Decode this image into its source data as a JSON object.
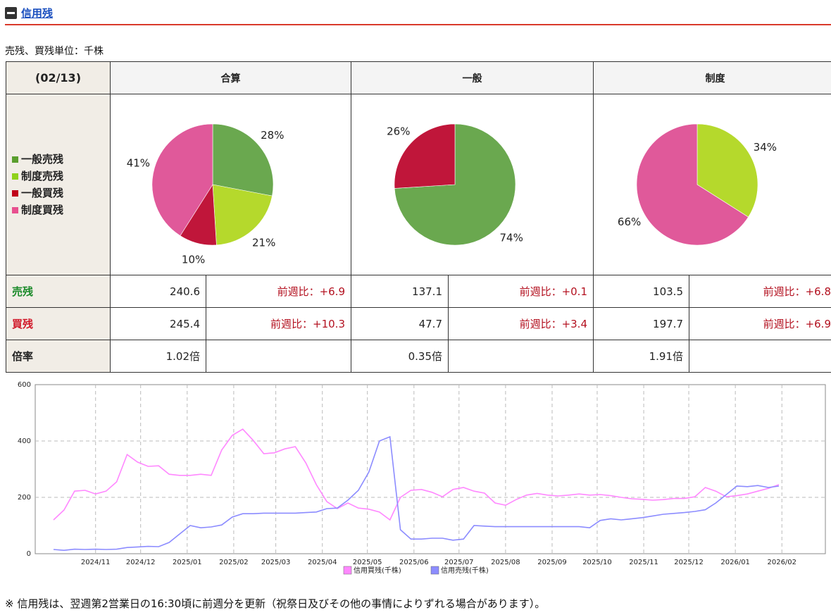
{
  "header": {
    "title": "信用残",
    "unit_note": "売残、買残単位：千株"
  },
  "colors": {
    "general_sell": "#6aa84f",
    "system_sell": "#b5d92c",
    "general_buy": "#c0163a",
    "system_buy": "#e0599a",
    "line_buy": "#ff88ff",
    "line_sell": "#8c8cff"
  },
  "table": {
    "date": "(02/13)",
    "columns": [
      "合算",
      "一般",
      "制度"
    ],
    "legend": [
      {
        "label": "一般売残",
        "color": "#5a9e2e"
      },
      {
        "label": "制度売残",
        "color": "#8fd11a"
      },
      {
        "label": "一般買残",
        "color": "#c0001a"
      },
      {
        "label": "制度買残",
        "color": "#e8508f"
      }
    ],
    "row_labels": {
      "sell": "売残",
      "buy": "買残",
      "ratio": "倍率"
    },
    "groups": [
      {
        "sell": "240.6",
        "sell_cmp": "前週比：+6.9",
        "buy": "245.4",
        "buy_cmp": "前週比：+10.3",
        "ratio": "1.02倍"
      },
      {
        "sell": "137.1",
        "sell_cmp": "前週比：+0.1",
        "buy": "47.7",
        "buy_cmp": "前週比：+3.4",
        "ratio": "0.35倍"
      },
      {
        "sell": "103.5",
        "sell_cmp": "前週比：+6.8",
        "buy": "197.7",
        "buy_cmp": "前週比：+6.9",
        "ratio": "1.91倍"
      }
    ]
  },
  "chart_data": [
    {
      "type": "pie",
      "title": "合算",
      "slices": [
        {
          "name": "一般売残",
          "value": 28,
          "label": "28%"
        },
        {
          "name": "制度売残",
          "value": 21,
          "label": "21%"
        },
        {
          "name": "一般買残",
          "value": 10,
          "label": "10%"
        },
        {
          "name": "制度買残",
          "value": 41,
          "label": "41%"
        }
      ]
    },
    {
      "type": "pie",
      "title": "一般",
      "slices": [
        {
          "name": "一般売残",
          "value": 74,
          "label": "74%"
        },
        {
          "name": "一般買残",
          "value": 26,
          "label": "26%"
        }
      ]
    },
    {
      "type": "pie",
      "title": "制度",
      "slices": [
        {
          "name": "制度売残",
          "value": 34,
          "label": "34%"
        },
        {
          "name": "制度買残",
          "value": 66,
          "label": "66%"
        }
      ]
    },
    {
      "type": "line",
      "x_start": "2024-10-04",
      "x_step_days": 7,
      "ylim": [
        0,
        600
      ],
      "yticks": [
        0,
        200,
        400,
        600
      ],
      "xticks": [
        "2024/11",
        "2024/12",
        "2025/01",
        "2025/02",
        "2025/03",
        "2025/04",
        "2025/05",
        "2025/06",
        "2025/07",
        "2025/08",
        "2025/09",
        "2025/10",
        "2025/11",
        "2025/12",
        "2026/01",
        "2026/02"
      ],
      "grid": true,
      "legend_position": "bottom",
      "series": [
        {
          "name": "信用買残(千株)",
          "color": "#ff88ff",
          "values": [
            120,
            155,
            222,
            225,
            212,
            222,
            255,
            352,
            325,
            310,
            312,
            282,
            278,
            278,
            282,
            278,
            368,
            420,
            442,
            402,
            355,
            358,
            372,
            380,
            322,
            245,
            185,
            160,
            180,
            162,
            158,
            148,
            120,
            200,
            225,
            228,
            218,
            202,
            228,
            235,
            222,
            215,
            180,
            172,
            192,
            208,
            214,
            208,
            205,
            208,
            212,
            208,
            210,
            206,
            200,
            195,
            193,
            190,
            192,
            196,
            196,
            202,
            235,
            222,
            202,
            206,
            212,
            222,
            232,
            245
          ]
        },
        {
          "name": "信用売残(千株)",
          "color": "#8c8cff",
          "values": [
            15,
            12,
            16,
            15,
            16,
            15,
            16,
            22,
            24,
            26,
            25,
            40,
            70,
            100,
            92,
            95,
            102,
            130,
            142,
            142,
            144,
            144,
            144,
            144,
            146,
            148,
            160,
            162,
            190,
            225,
            290,
            400,
            415,
            85,
            52,
            52,
            55,
            55,
            48,
            52,
            100,
            98,
            96,
            96,
            96,
            96,
            96,
            96,
            96,
            96,
            96,
            92,
            118,
            124,
            120,
            124,
            128,
            134,
            140,
            143,
            146,
            150,
            156,
            180,
            210,
            240,
            238,
            242,
            235,
            240
          ]
        }
      ]
    }
  ],
  "footnote": "※ 信用残は、翌週第2営業日の16:30頃に前週分を更新（祝祭日及びその他の事情によりずれる場合があります）。"
}
